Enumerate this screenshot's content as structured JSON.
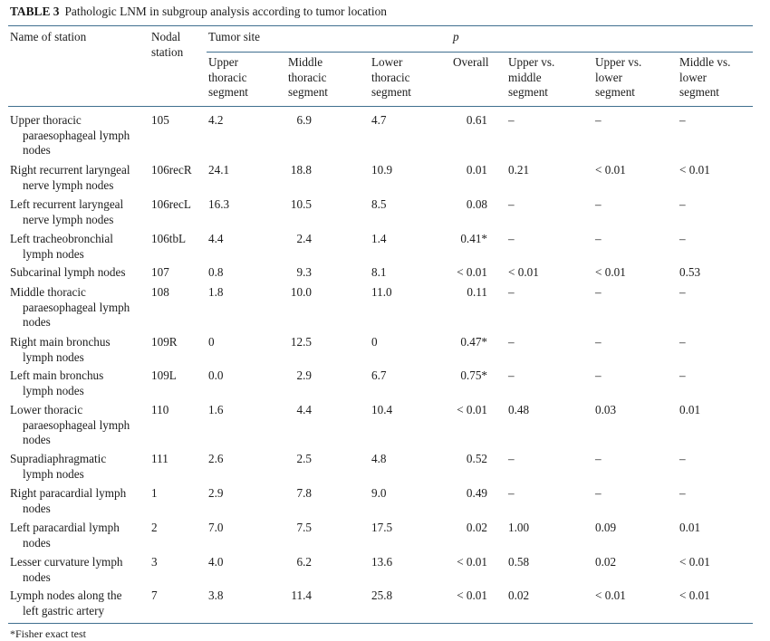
{
  "caption": {
    "label": "TABLE 3",
    "text": "Pathologic LNM in subgroup analysis according to tumor location"
  },
  "header": {
    "name": "Name of station",
    "nodal": [
      "Nodal",
      "station"
    ],
    "tumor_site": "Tumor site",
    "p": "p",
    "upper": [
      "Upper",
      "thoracic",
      "segment"
    ],
    "middle": [
      "Middle",
      "thoracic",
      "segment"
    ],
    "lower": [
      "Lower",
      "thoracic",
      "segment"
    ],
    "overall": "Overall",
    "um": [
      "Upper vs.",
      "middle",
      "segment"
    ],
    "ul": [
      "Upper vs.",
      "lower",
      "segment"
    ],
    "ml": [
      "Middle vs.",
      "lower",
      "segment"
    ]
  },
  "rows": [
    {
      "name": [
        "Upper thoracic",
        "paraesophageal lymph",
        "nodes"
      ],
      "station": "105",
      "upper": "4.2",
      "middle": "6.9",
      "lower": "4.7",
      "overall": "0.61",
      "um": "–",
      "ul": "–",
      "ml": "–"
    },
    {
      "name": [
        "Right recurrent laryngeal",
        "nerve lymph nodes"
      ],
      "station": "106recR",
      "upper": "24.1",
      "middle": "18.8",
      "lower": "10.9",
      "overall": "0.01",
      "um": "0.21",
      "ul": "< 0.01",
      "ml": "< 0.01"
    },
    {
      "name": [
        "Left recurrent laryngeal",
        "nerve lymph nodes"
      ],
      "station": "106recL",
      "upper": "16.3",
      "middle": "10.5",
      "lower": "8.5",
      "overall": "0.08",
      "um": "–",
      "ul": "–",
      "ml": "–"
    },
    {
      "name": [
        "Left tracheobronchial",
        "lymph nodes"
      ],
      "station": "106tbL",
      "upper": "4.4",
      "middle": "2.4",
      "lower": "1.4",
      "overall": "0.41*",
      "um": "–",
      "ul": "–",
      "ml": "–"
    },
    {
      "name": [
        "Subcarinal lymph nodes"
      ],
      "station": "107",
      "upper": "0.8",
      "middle": "9.3",
      "lower": "8.1",
      "overall": "< 0.01",
      "um": "< 0.01",
      "ul": "< 0.01",
      "ml": "0.53"
    },
    {
      "name": [
        "Middle thoracic",
        "paraesophageal lymph",
        "nodes"
      ],
      "station": "108",
      "upper": "1.8",
      "middle": "10.0",
      "lower": "11.0",
      "overall": "0.11",
      "um": "–",
      "ul": "–",
      "ml": "–"
    },
    {
      "name": [
        "Right main bronchus",
        "lymph nodes"
      ],
      "station": "109R",
      "upper": "0",
      "middle": "12.5",
      "lower": "0",
      "overall": "0.47*",
      "um": "–",
      "ul": "–",
      "ml": "–"
    },
    {
      "name": [
        "Left main bronchus",
        "lymph nodes"
      ],
      "station": "109L",
      "upper": "0.0",
      "middle": "2.9",
      "lower": "6.7",
      "overall": "0.75*",
      "um": "–",
      "ul": "–",
      "ml": "–"
    },
    {
      "name": [
        "Lower thoracic",
        "paraesophageal lymph",
        "nodes"
      ],
      "station": "110",
      "upper": "1.6",
      "middle": "4.4",
      "lower": "10.4",
      "overall": "< 0.01",
      "um": "0.48",
      "ul": "0.03",
      "ml": "0.01"
    },
    {
      "name": [
        "Supradiaphragmatic",
        "lymph nodes"
      ],
      "station": "111",
      "upper": "2.6",
      "middle": "2.5",
      "lower": "4.8",
      "overall": "0.52",
      "um": "–",
      "ul": "–",
      "ml": "–"
    },
    {
      "name": [
        "Right paracardial lymph",
        "nodes"
      ],
      "station": "1",
      "upper": "2.9",
      "middle": "7.8",
      "lower": "9.0",
      "overall": "0.49",
      "um": "–",
      "ul": "–",
      "ml": "–"
    },
    {
      "name": [
        "Left paracardial lymph",
        "nodes"
      ],
      "station": "2",
      "upper": "7.0",
      "middle": "7.5",
      "lower": "17.5",
      "overall": "0.02",
      "um": "1.00",
      "ul": "0.09",
      "ml": "0.01"
    },
    {
      "name": [
        "Lesser curvature lymph",
        "nodes"
      ],
      "station": "3",
      "upper": "4.0",
      "middle": "6.2",
      "lower": "13.6",
      "overall": "< 0.01",
      "um": "0.58",
      "ul": "0.02",
      "ml": "< 0.01"
    },
    {
      "name": [
        "Lymph nodes along the",
        "left gastric artery"
      ],
      "station": "7",
      "upper": "3.8",
      "middle": "11.4",
      "lower": "25.8",
      "overall": "< 0.01",
      "um": "0.02",
      "ul": "< 0.01",
      "ml": "< 0.01"
    }
  ],
  "footnote": "*Fisher exact test"
}
